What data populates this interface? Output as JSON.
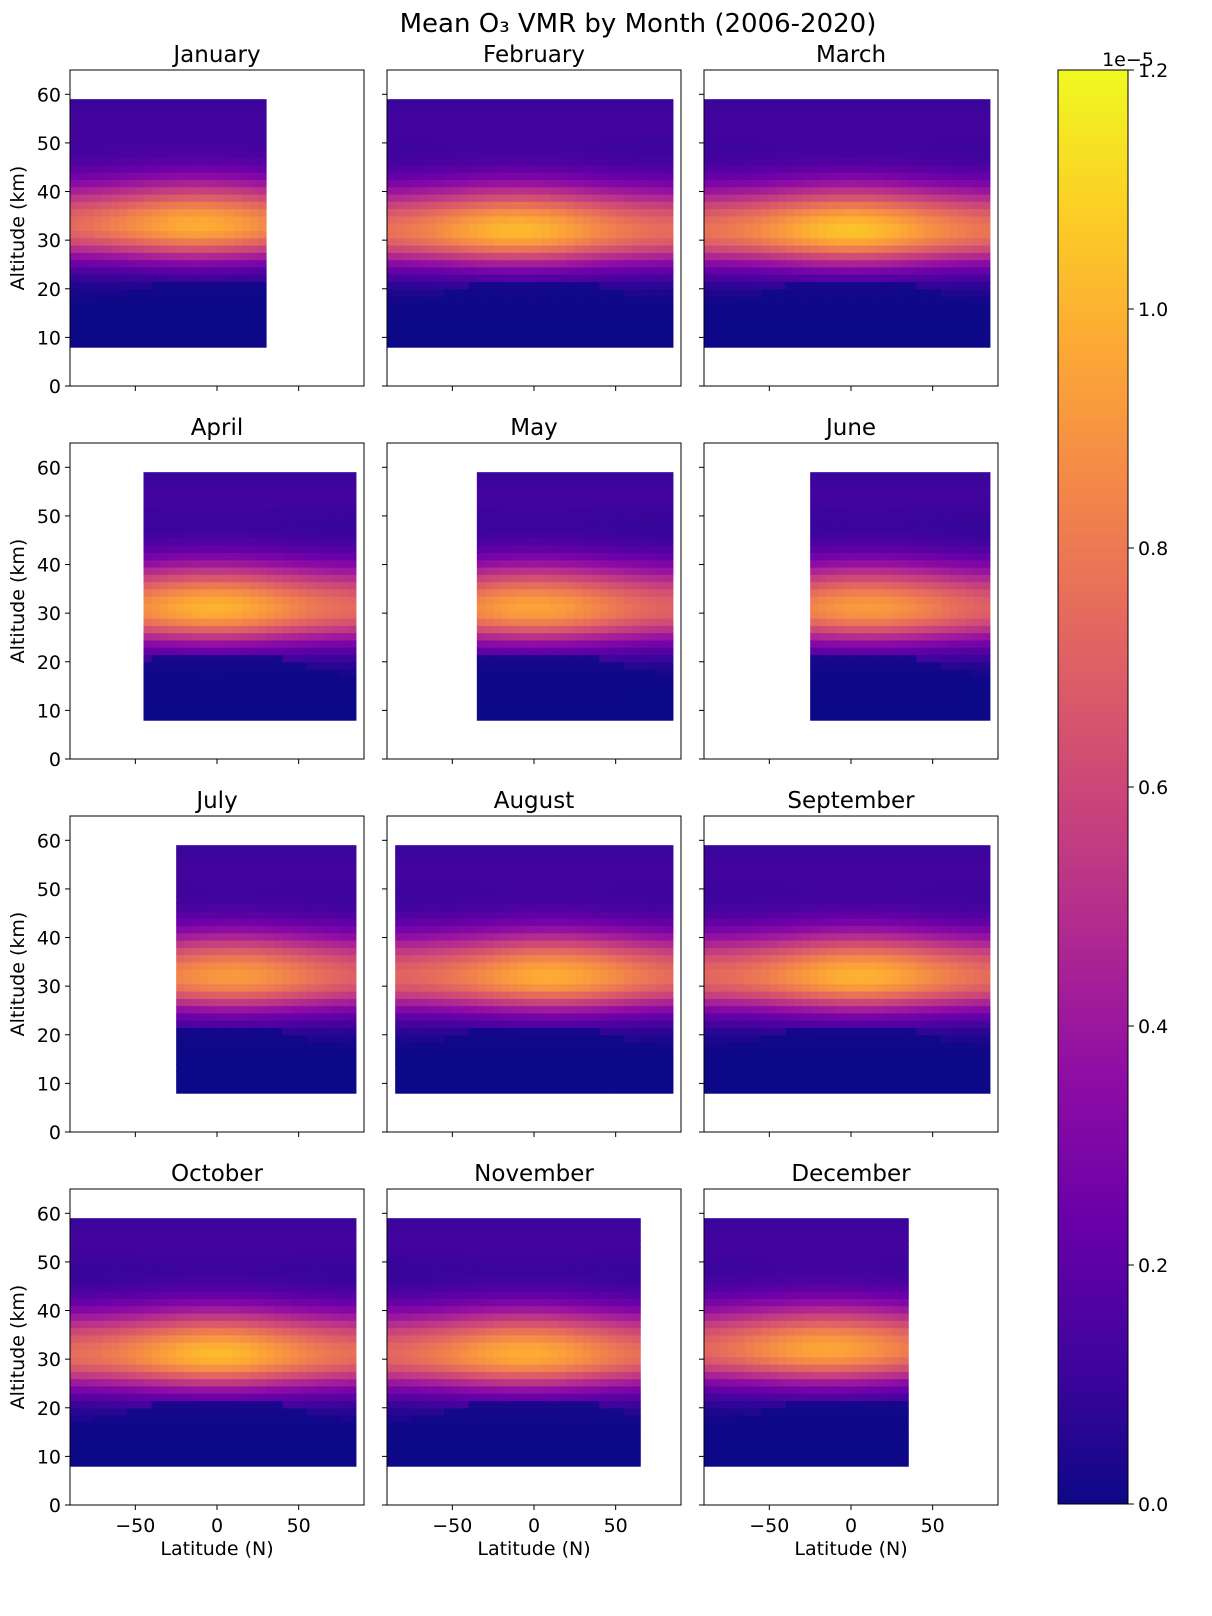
{
  "chart_data": {
    "type": "heatmap",
    "title": "Mean O₃ VMR by Month (2006-2020)",
    "xlabel": "Latitude (N)",
    "ylabel": "Altitude (km)",
    "xlim": [
      -90,
      90
    ],
    "ylim": [
      0,
      65
    ],
    "xticks": [
      -50,
      0,
      50
    ],
    "yticks": [
      0,
      10,
      20,
      30,
      40,
      50,
      60
    ],
    "grid": false,
    "colormap": "plasma",
    "colorbar": {
      "min": 0.0,
      "max": 1.2,
      "ticks": [
        0.0,
        0.2,
        0.4,
        0.6,
        0.8,
        1.0,
        1.2
      ],
      "tick_labels": [
        "0.0",
        "0.2",
        "0.4",
        "0.6",
        "0.8",
        "1.0",
        "1.2"
      ],
      "offset_label": "1e−5",
      "placement": "right"
    },
    "altitude_range_km": [
      8,
      59
    ],
    "panels": [
      {
        "month": "January",
        "lat_range": [
          -90,
          30
        ],
        "peak_lat": -12,
        "peak_alt": 33,
        "peak_value": 0.98
      },
      {
        "month": "February",
        "lat_range": [
          -90,
          85
        ],
        "peak_lat": -10,
        "peak_alt": 32,
        "peak_value": 1.02
      },
      {
        "month": "March",
        "lat_range": [
          -90,
          85
        ],
        "peak_lat": 0,
        "peak_alt": 32,
        "peak_value": 1.05
      },
      {
        "month": "April",
        "lat_range": [
          -45,
          85
        ],
        "peak_lat": -2,
        "peak_alt": 31,
        "peak_value": 1.0
      },
      {
        "month": "May",
        "lat_range": [
          -35,
          85
        ],
        "peak_lat": 0,
        "peak_alt": 31,
        "peak_value": 0.95
      },
      {
        "month": "June",
        "lat_range": [
          -25,
          85
        ],
        "peak_lat": 10,
        "peak_alt": 31,
        "peak_value": 0.92
      },
      {
        "month": "July",
        "lat_range": [
          -25,
          85
        ],
        "peak_lat": 10,
        "peak_alt": 32,
        "peak_value": 0.92
      },
      {
        "month": "August",
        "lat_range": [
          -85,
          85
        ],
        "peak_lat": 10,
        "peak_alt": 32,
        "peak_value": 0.98
      },
      {
        "month": "September",
        "lat_range": [
          -90,
          85
        ],
        "peak_lat": 5,
        "peak_alt": 32,
        "peak_value": 1.0
      },
      {
        "month": "October",
        "lat_range": [
          -90,
          85
        ],
        "peak_lat": 0,
        "peak_alt": 31,
        "peak_value": 1.02
      },
      {
        "month": "November",
        "lat_range": [
          -90,
          65
        ],
        "peak_lat": -5,
        "peak_alt": 31,
        "peak_value": 0.98
      },
      {
        "month": "December",
        "lat_range": [
          -90,
          35
        ],
        "peak_lat": -15,
        "peak_alt": 32,
        "peak_value": 0.96
      }
    ]
  }
}
